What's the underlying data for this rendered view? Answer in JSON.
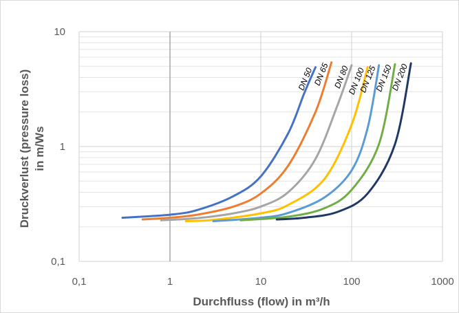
{
  "chart_data": {
    "type": "line",
    "title": "",
    "xlabel": "Durchfluss (flow) in m³/h",
    "ylabel_lines": [
      "Druckverlust (pressure loss)",
      "in m/Ws"
    ],
    "x_scale": "log",
    "y_scale": "log",
    "xlim": [
      0.1,
      1000
    ],
    "ylim": [
      0.1,
      10
    ],
    "x_ticks": [
      {
        "value": 0.1,
        "label": "0,1"
      },
      {
        "value": 1,
        "label": "1"
      },
      {
        "value": 10,
        "label": "10"
      },
      {
        "value": 100,
        "label": "100"
      },
      {
        "value": 1000,
        "label": "1000"
      }
    ],
    "y_ticks": [
      {
        "value": 0.1,
        "label": "0,1"
      },
      {
        "value": 1,
        "label": "1"
      },
      {
        "value": 10,
        "label": "10"
      }
    ],
    "grid": "major and minor",
    "legend": "inline labels at curve ends",
    "series": [
      {
        "name": "DN 50",
        "color": "#4472C4",
        "points": [
          [
            0.3,
            0.24
          ],
          [
            1,
            0.255
          ],
          [
            2,
            0.28
          ],
          [
            5,
            0.37
          ],
          [
            10,
            0.55
          ],
          [
            20,
            1.3
          ],
          [
            30,
            2.9
          ],
          [
            40,
            4.9
          ]
        ]
      },
      {
        "name": "DN 65",
        "color": "#ED7D31",
        "points": [
          [
            0.5,
            0.232
          ],
          [
            1,
            0.24
          ],
          [
            2,
            0.255
          ],
          [
            5,
            0.3
          ],
          [
            10,
            0.39
          ],
          [
            20,
            0.68
          ],
          [
            40,
            2.0
          ],
          [
            60,
            5.4
          ]
        ]
      },
      {
        "name": "DN 80",
        "color": "#A5A5A5",
        "points": [
          [
            0.8,
            0.228
          ],
          [
            2,
            0.238
          ],
          [
            5,
            0.262
          ],
          [
            10,
            0.3
          ],
          [
            20,
            0.4
          ],
          [
            40,
            0.78
          ],
          [
            70,
            2.3
          ],
          [
            100,
            5.1
          ]
        ]
      },
      {
        "name": "DN 100",
        "color": "#FFC000",
        "points": [
          [
            1.5,
            0.224
          ],
          [
            3,
            0.23
          ],
          [
            10,
            0.262
          ],
          [
            20,
            0.31
          ],
          [
            50,
            0.52
          ],
          [
            100,
            1.55
          ],
          [
            150,
            4.9
          ]
        ]
      },
      {
        "name": "DN 125",
        "color": "#5B9BD5",
        "points": [
          [
            3,
            0.224
          ],
          [
            10,
            0.24
          ],
          [
            20,
            0.264
          ],
          [
            50,
            0.36
          ],
          [
            100,
            0.62
          ],
          [
            150,
            1.45
          ],
          [
            200,
            5.1
          ]
        ]
      },
      {
        "name": "DN 150",
        "color": "#70AD47",
        "points": [
          [
            6,
            0.228
          ],
          [
            20,
            0.245
          ],
          [
            50,
            0.29
          ],
          [
            100,
            0.42
          ],
          [
            200,
            1.05
          ],
          [
            300,
            5.2
          ]
        ]
      },
      {
        "name": "DN 200",
        "color": "#203864",
        "points": [
          [
            15,
            0.232
          ],
          [
            30,
            0.24
          ],
          [
            70,
            0.27
          ],
          [
            150,
            0.39
          ],
          [
            300,
            1.05
          ],
          [
            450,
            5.3
          ]
        ]
      }
    ]
  }
}
